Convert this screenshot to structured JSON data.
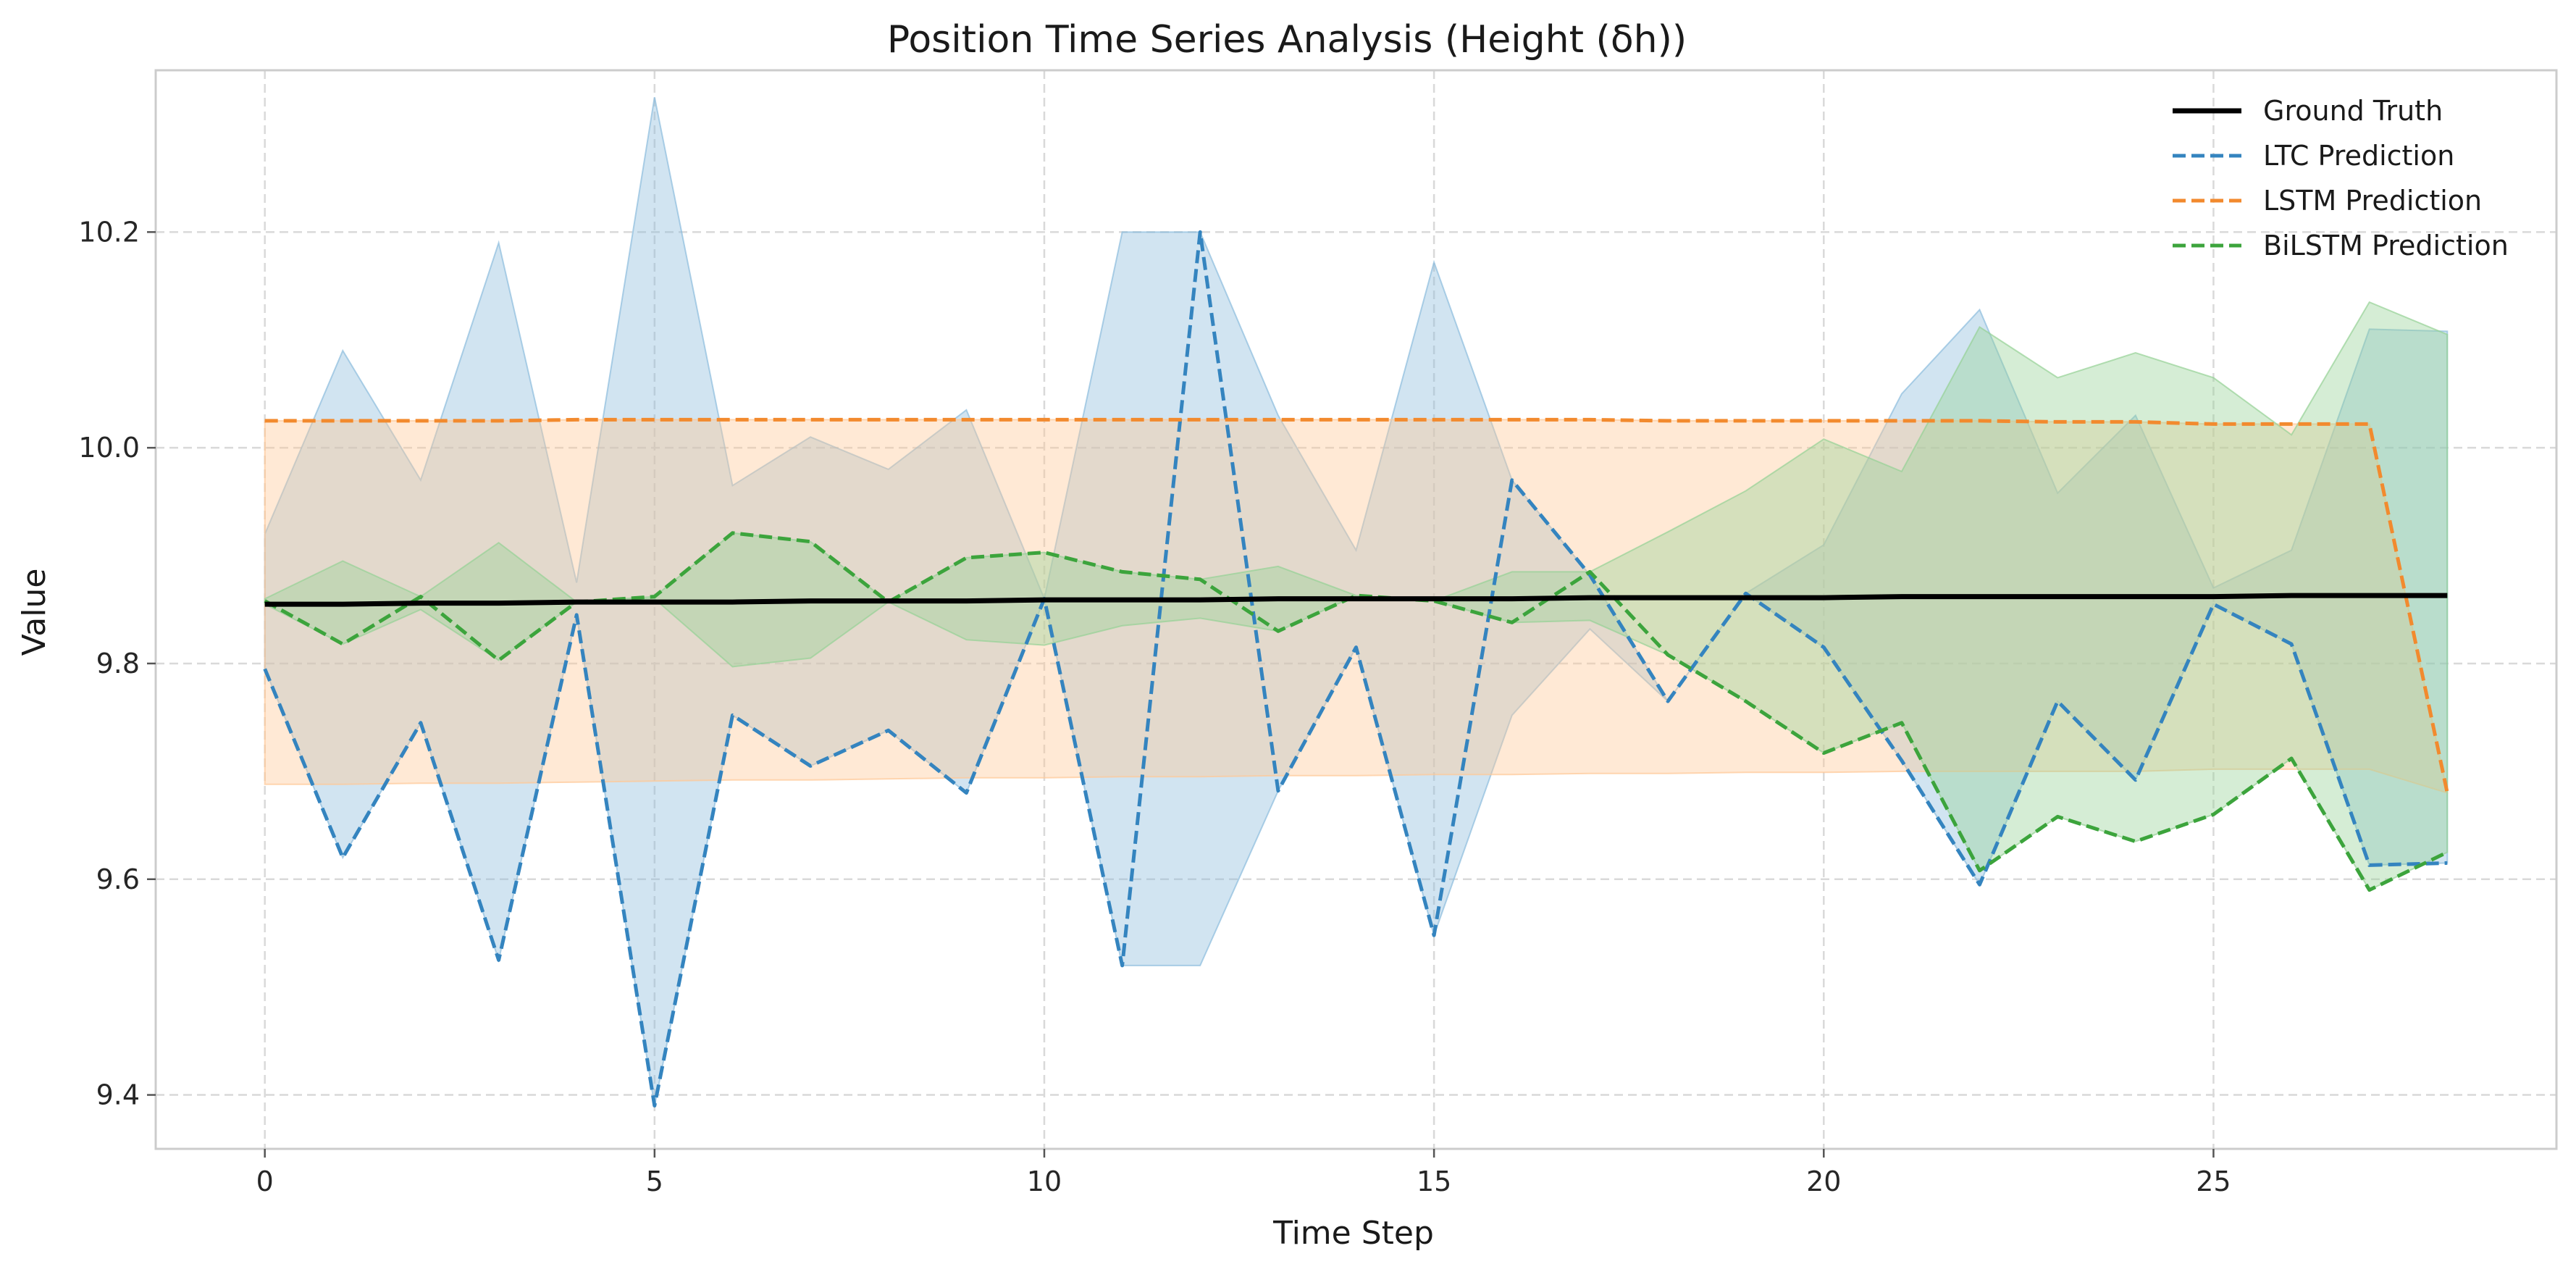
{
  "chart_data": {
    "type": "line",
    "title": "Position Time Series Analysis (Height (δh))",
    "xlabel": "Time Step",
    "ylabel": "Value",
    "xlim": [
      -1.4,
      29.4
    ],
    "ylim": [
      9.35,
      10.35
    ],
    "x_ticks": [
      0,
      5,
      10,
      15,
      20,
      25
    ],
    "y_ticks": [
      9.4,
      9.6,
      9.8,
      10.0,
      10.2
    ],
    "y_tick_labels": [
      "9.4",
      "9.6",
      "9.8",
      "10.0",
      "10.2"
    ],
    "grid": true,
    "legend_position": "top-right",
    "x": [
      0,
      1,
      2,
      3,
      4,
      5,
      6,
      7,
      8,
      9,
      10,
      11,
      12,
      13,
      14,
      15,
      16,
      17,
      18,
      19,
      20,
      21,
      22,
      23,
      24,
      25,
      26,
      27,
      28
    ],
    "series": [
      {
        "name": "Ground Truth",
        "color": "#000000",
        "style": "solid",
        "values": [
          9.855,
          9.855,
          9.856,
          9.856,
          9.857,
          9.857,
          9.857,
          9.858,
          9.858,
          9.858,
          9.859,
          9.859,
          9.859,
          9.86,
          9.86,
          9.86,
          9.86,
          9.861,
          9.861,
          9.861,
          9.861,
          9.862,
          9.862,
          9.862,
          9.862,
          9.862,
          9.863,
          9.863,
          9.863
        ]
      },
      {
        "name": "LTC Prediction",
        "color": "#3484bf",
        "fill_color": "#8bbcdd",
        "style": "dashed",
        "values": [
          9.795,
          9.62,
          9.745,
          9.525,
          9.845,
          9.39,
          9.752,
          9.705,
          9.738,
          9.68,
          9.86,
          9.52,
          10.2,
          9.682,
          9.815,
          9.548,
          9.97,
          9.882,
          9.765,
          9.865,
          9.815,
          9.71,
          9.595,
          9.765,
          9.692,
          9.855,
          9.818,
          9.613,
          9.615
        ],
        "band_upper": [
          9.92,
          10.09,
          9.97,
          10.19,
          9.875,
          10.325,
          9.965,
          10.01,
          9.98,
          10.035,
          9.86,
          10.2,
          10.2,
          10.03,
          9.905,
          10.172,
          9.97,
          9.882,
          9.765,
          9.865,
          9.91,
          10.05,
          10.128,
          9.958,
          10.03,
          9.87,
          9.905,
          10.11,
          10.108
        ],
        "band_lower": [
          9.795,
          9.62,
          9.745,
          9.525,
          9.845,
          9.39,
          9.752,
          9.705,
          9.738,
          9.68,
          9.86,
          9.52,
          9.52,
          9.682,
          9.815,
          9.548,
          9.752,
          9.832,
          9.765,
          9.865,
          9.815,
          9.71,
          9.595,
          9.765,
          9.692,
          9.855,
          9.818,
          9.613,
          9.615
        ]
      },
      {
        "name": "LSTM Prediction",
        "color": "#f28a2e",
        "fill_color": "#ffc896",
        "style": "dashed",
        "values": [
          10.025,
          10.025,
          10.025,
          10.025,
          10.026,
          10.026,
          10.026,
          10.026,
          10.026,
          10.026,
          10.026,
          10.026,
          10.026,
          10.026,
          10.026,
          10.026,
          10.026,
          10.026,
          10.025,
          10.025,
          10.025,
          10.025,
          10.025,
          10.024,
          10.024,
          10.022,
          10.022,
          10.022,
          9.68
        ],
        "band_upper": [
          10.025,
          10.025,
          10.025,
          10.025,
          10.026,
          10.026,
          10.026,
          10.026,
          10.026,
          10.026,
          10.026,
          10.026,
          10.026,
          10.026,
          10.026,
          10.026,
          10.026,
          10.026,
          10.025,
          10.025,
          10.025,
          10.025,
          10.025,
          10.024,
          10.024,
          10.022,
          10.022,
          10.022,
          9.68
        ],
        "band_lower": [
          9.688,
          9.688,
          9.689,
          9.689,
          9.69,
          9.691,
          9.692,
          9.692,
          9.693,
          9.694,
          9.694,
          9.695,
          9.695,
          9.696,
          9.696,
          9.697,
          9.697,
          9.698,
          9.698,
          9.699,
          9.699,
          9.7,
          9.7,
          9.7,
          9.7,
          9.702,
          9.702,
          9.702,
          9.68
        ]
      },
      {
        "name": "BiLSTM Prediction",
        "color": "#3ca43c",
        "fill_color": "#96d296",
        "style": "dashed",
        "values": [
          9.858,
          9.818,
          9.862,
          9.803,
          9.857,
          9.862,
          9.921,
          9.913,
          9.857,
          9.898,
          9.903,
          9.885,
          9.878,
          9.83,
          9.863,
          9.858,
          9.838,
          9.885,
          9.808,
          9.765,
          9.717,
          9.745,
          9.608,
          9.658,
          9.635,
          9.66,
          9.712,
          9.59,
          9.625
        ],
        "band_upper": [
          9.86,
          9.895,
          9.862,
          9.912,
          9.857,
          9.862,
          9.921,
          9.913,
          9.857,
          9.898,
          9.903,
          9.885,
          9.878,
          9.89,
          9.863,
          9.858,
          9.885,
          9.885,
          9.922,
          9.96,
          10.008,
          9.978,
          10.112,
          10.065,
          10.088,
          10.065,
          10.012,
          10.135,
          10.105
        ],
        "band_lower": [
          9.855,
          9.818,
          9.85,
          9.803,
          9.857,
          9.86,
          9.797,
          9.805,
          9.857,
          9.822,
          9.817,
          9.835,
          9.842,
          9.83,
          9.863,
          9.858,
          9.838,
          9.84,
          9.808,
          9.765,
          9.717,
          9.745,
          9.608,
          9.658,
          9.635,
          9.66,
          9.712,
          9.59,
          9.625
        ]
      }
    ]
  }
}
